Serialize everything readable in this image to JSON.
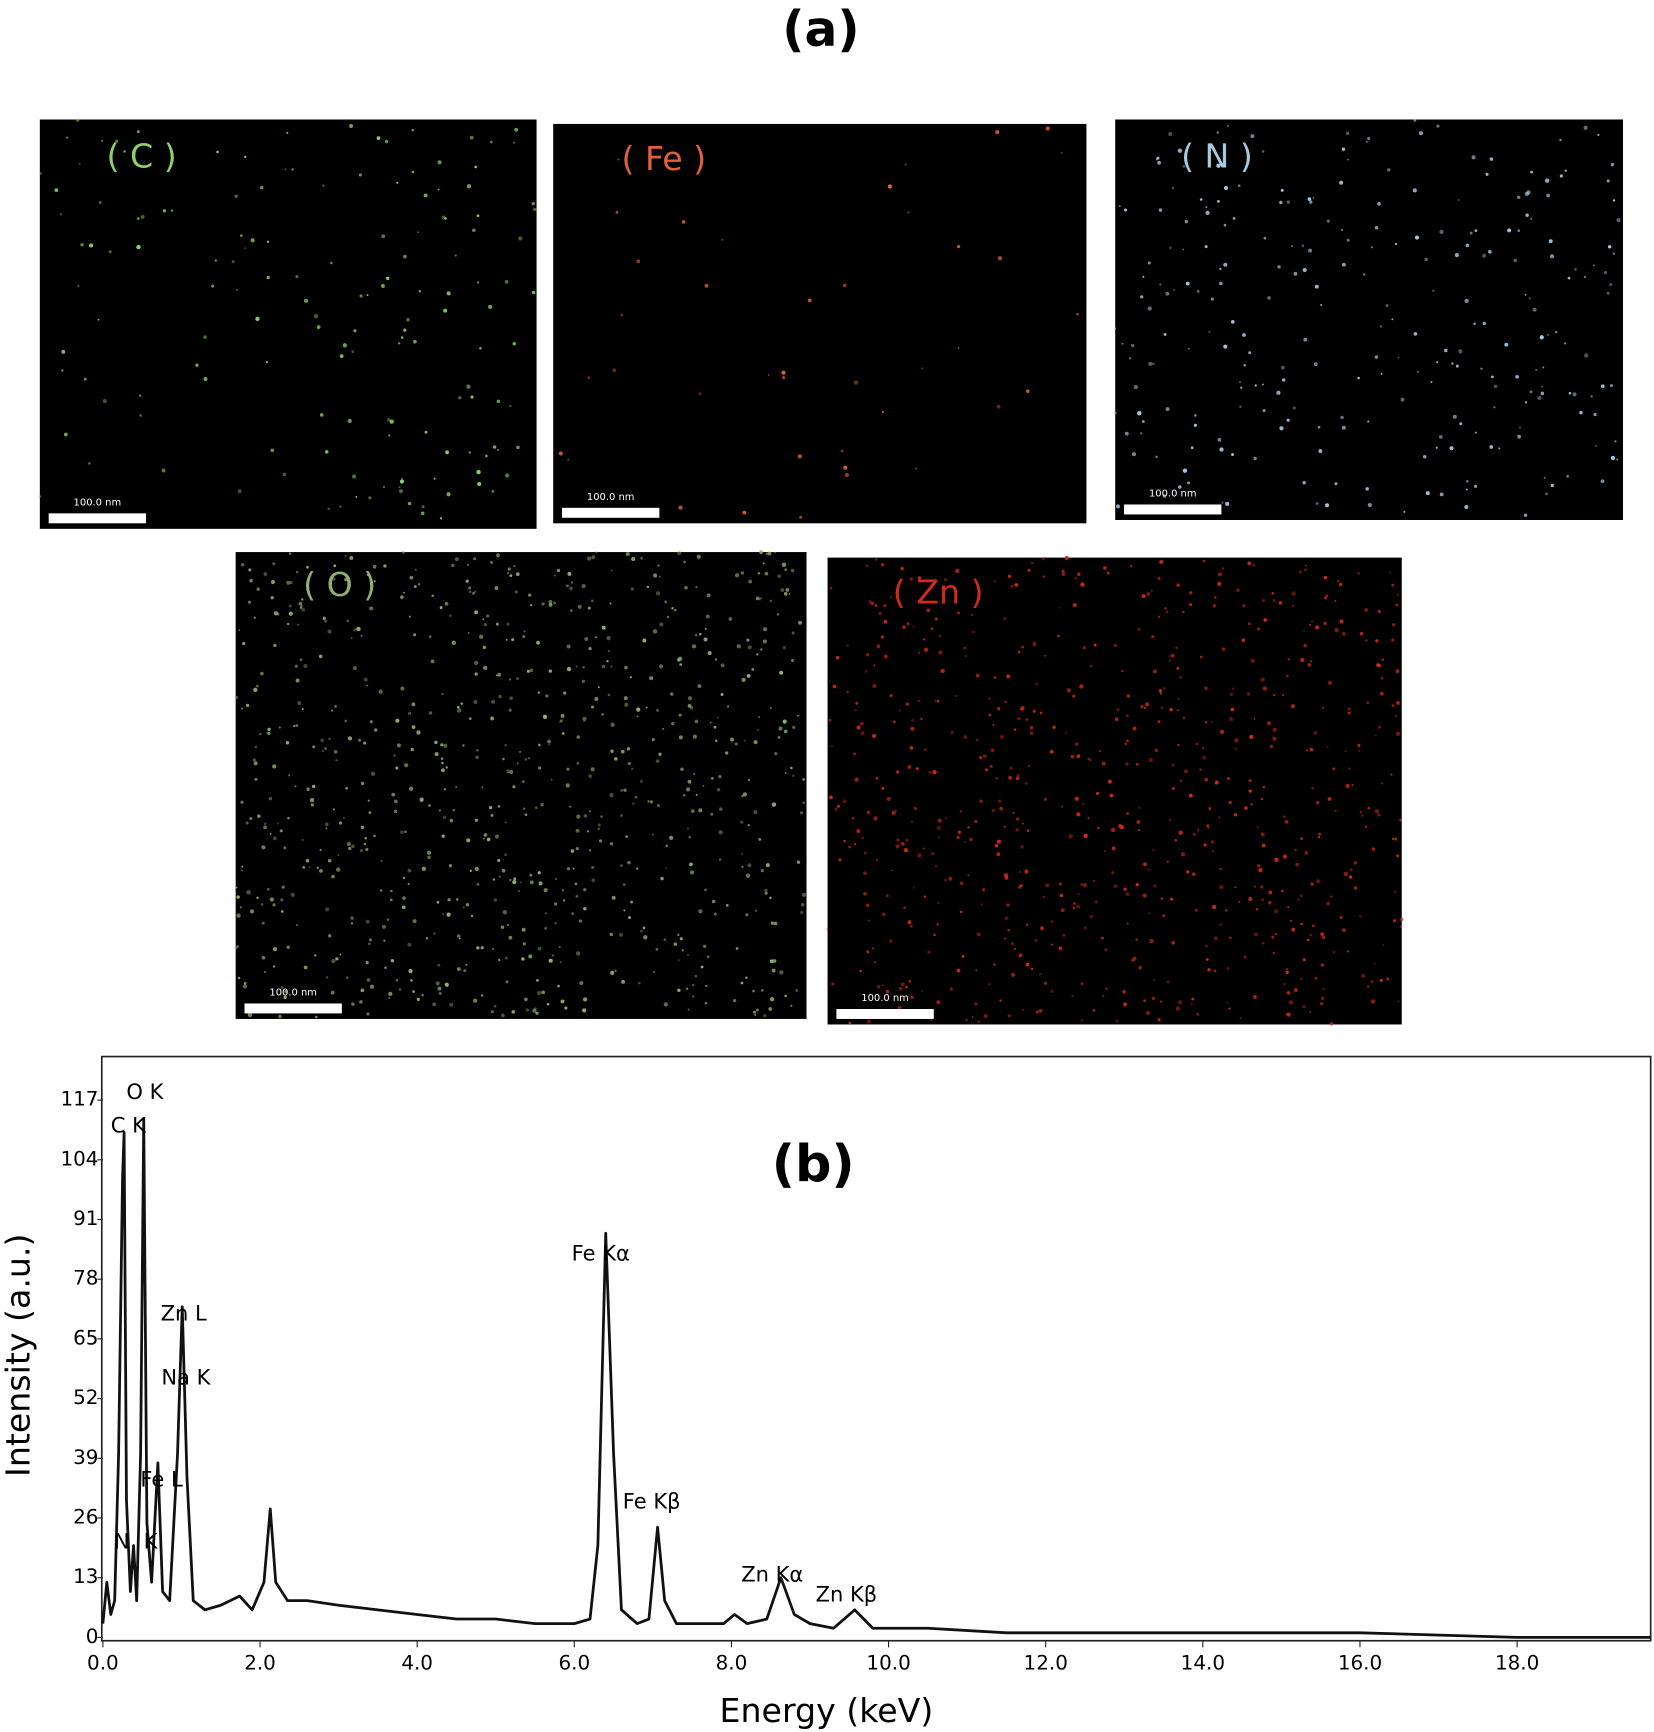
{
  "figure_label": "(a)",
  "maps": [
    {
      "label": "( C )",
      "color": "#8fd06a",
      "scale_label": "100.0 nm"
    },
    {
      "label": "( Fe )",
      "color": "#e0603a",
      "scale_label": "100.0 nm"
    },
    {
      "label": "( N )",
      "color": "#a8c8e0",
      "scale_label": "100.0 nm"
    },
    {
      "label": "( O )",
      "color": "#8fb070",
      "scale_label": "100.0 nm"
    },
    {
      "label": "( Zn )",
      "color": "#d02a1a",
      "scale_label": "100.0 nm"
    }
  ],
  "chart_data": {
    "type": "line",
    "title": "(b)",
    "x_label": "Energy (keV)",
    "y_label": "Intensity (a.u.)",
    "color": "#111111",
    "xlim": [
      0,
      19.7
    ],
    "ylim": [
      0,
      126
    ],
    "xticks": [
      {
        "value": 0,
        "label": "0.0"
      },
      {
        "value": 2,
        "label": "2.0"
      },
      {
        "value": 4,
        "label": "4.0"
      },
      {
        "value": 6,
        "label": "6.0"
      },
      {
        "value": 8,
        "label": "8.0"
      },
      {
        "value": 10,
        "label": "10.0"
      },
      {
        "value": 12,
        "label": "12.0"
      },
      {
        "value": 14,
        "label": "14.0"
      },
      {
        "value": 16,
        "label": "16.0"
      },
      {
        "value": 18,
        "label": "18.0"
      }
    ],
    "yticks": [
      0,
      13,
      26,
      39,
      52,
      65,
      78,
      91,
      104,
      117
    ],
    "annotations": [
      "O  K",
      "C  K",
      "Zn L",
      "Na K",
      "Fe L",
      "N",
      "K",
      "Fe Kα",
      "Fe Kβ",
      "Zn Kα",
      "Zn Kβ"
    ],
    "x": [
      0.0,
      0.05,
      0.1,
      0.15,
      0.2,
      0.25,
      0.27,
      0.3,
      0.35,
      0.39,
      0.43,
      0.48,
      0.52,
      0.56,
      0.62,
      0.7,
      0.76,
      0.85,
      0.95,
      1.01,
      1.07,
      1.15,
      1.3,
      1.5,
      1.74,
      1.9,
      2.05,
      2.13,
      2.2,
      2.35,
      2.6,
      3.0,
      3.5,
      4.0,
      4.5,
      5.0,
      5.5,
      6.0,
      6.2,
      6.3,
      6.4,
      6.5,
      6.6,
      6.8,
      6.95,
      7.06,
      7.15,
      7.3,
      7.6,
      7.9,
      8.04,
      8.2,
      8.45,
      8.63,
      8.8,
      9.0,
      9.3,
      9.57,
      9.8,
      10.5,
      11.5,
      12.5,
      14,
      16,
      18,
      19.7
    ],
    "values": [
      3,
      12,
      5,
      8,
      40,
      100,
      110,
      30,
      10,
      20,
      8,
      40,
      113,
      25,
      12,
      38,
      10,
      8,
      40,
      72,
      35,
      8,
      6,
      7,
      9,
      6,
      12,
      28,
      12,
      8,
      8,
      7,
      6,
      5,
      4,
      4,
      3,
      3,
      4,
      20,
      88,
      40,
      6,
      3,
      4,
      24,
      8,
      3,
      3,
      3,
      5,
      3,
      4,
      13,
      5,
      3,
      2,
      6,
      2,
      2,
      1,
      1,
      1,
      1,
      0,
      0
    ]
  }
}
